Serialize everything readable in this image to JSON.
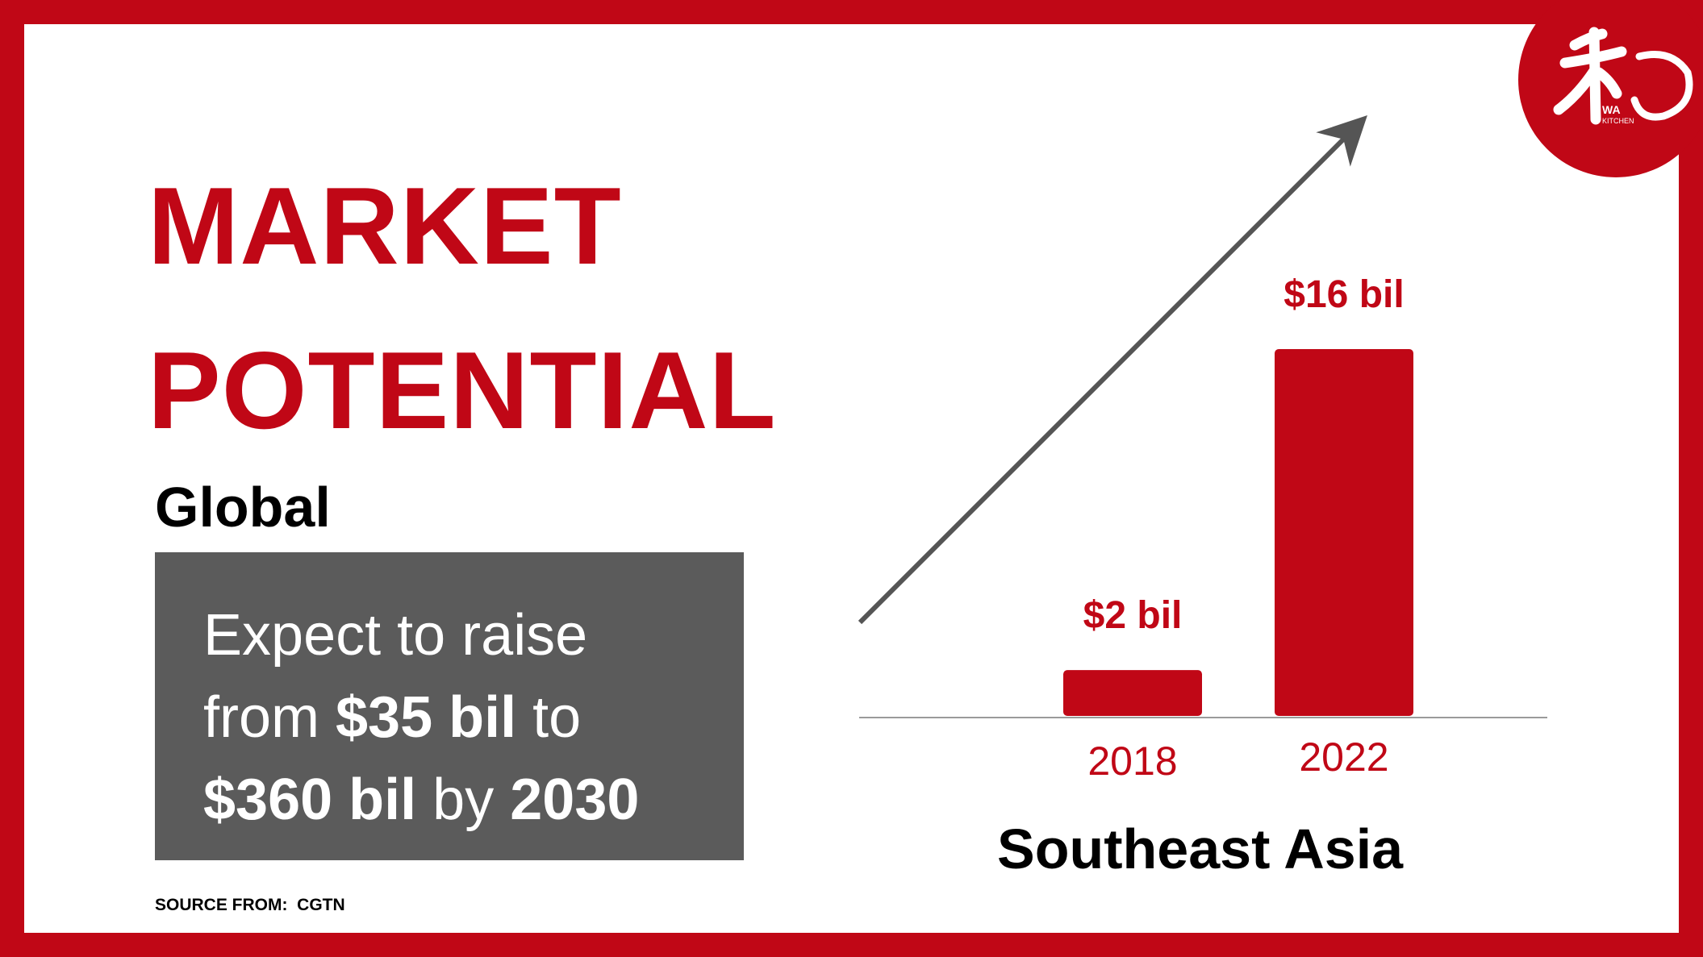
{
  "title": {
    "line1": "MARKET",
    "line2": "POTENTIAL"
  },
  "global": {
    "label": "Global",
    "line1": "Expect to raise",
    "line2_a": "from ",
    "line2_b": "$35 bil",
    "line2_c": " to",
    "line3_a": "$360 bil",
    "line3_b": " by ",
    "line3_c": "2030"
  },
  "source": "SOURCE FROM:  CGTN",
  "logo": {
    "text_wa": "WA",
    "text_kitchen": "KITCHEN"
  },
  "colors": {
    "accent": "#c00716",
    "box": "#5b5b5b",
    "arrow": "#555555"
  },
  "chart_data": {
    "type": "bar",
    "categories": [
      "2018",
      "2022"
    ],
    "values": [
      2,
      16
    ],
    "data_labels": [
      "$2 bil",
      "$16 bil"
    ],
    "title": "",
    "xlabel": "Southeast Asia",
    "ylabel": "",
    "ylim": [
      0,
      16
    ],
    "grid": false,
    "trend_arrow": "up"
  }
}
